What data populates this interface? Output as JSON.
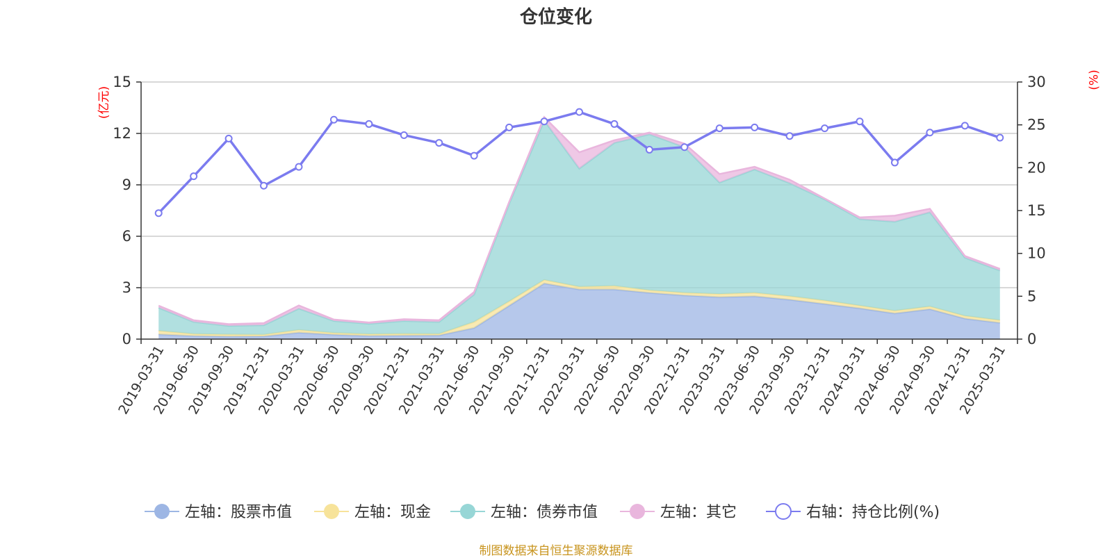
{
  "chart_data": {
    "type": "area",
    "title": "仓位变化",
    "left_unit": "(亿元)",
    "right_unit": "(%)",
    "source": "制图数据来自恒生聚源数据库",
    "ylim_left": [
      0,
      15
    ],
    "ylim_right": [
      0,
      30
    ],
    "yticks_left": [
      "0",
      "3",
      "6",
      "9",
      "12",
      "15"
    ],
    "yticks_right": [
      "0",
      "5",
      "10",
      "15",
      "20",
      "25",
      "30"
    ],
    "grid": true,
    "legend_position": "bottom",
    "categories": [
      "2019-03-31",
      "2019-06-30",
      "2019-09-30",
      "2019-12-31",
      "2020-03-31",
      "2020-06-30",
      "2020-09-30",
      "2020-12-31",
      "2021-03-31",
      "2021-06-30",
      "2021-09-30",
      "2021-12-31",
      "2022-03-31",
      "2022-06-30",
      "2022-09-30",
      "2022-12-31",
      "2023-03-31",
      "2023-06-30",
      "2023-09-30",
      "2023-12-31",
      "2024-03-31",
      "2024-06-30",
      "2024-09-30",
      "2024-12-31",
      "2025-03-31"
    ],
    "series": [
      {
        "name": "左轴：股票市值",
        "axis": "left",
        "color": "#9db6e4",
        "values": [
          0.28,
          0.18,
          0.15,
          0.16,
          0.38,
          0.26,
          0.19,
          0.21,
          0.22,
          0.65,
          1.95,
          3.25,
          2.9,
          2.9,
          2.7,
          2.55,
          2.45,
          2.5,
          2.3,
          2.05,
          1.8,
          1.5,
          1.75,
          1.2,
          0.95
        ]
      },
      {
        "name": "左轴：现金",
        "axis": "left",
        "color": "#f7e39a",
        "values": [
          0.2,
          0.12,
          0.12,
          0.1,
          0.15,
          0.1,
          0.1,
          0.1,
          0.08,
          0.35,
          0.25,
          0.2,
          0.15,
          0.2,
          0.15,
          0.15,
          0.18,
          0.2,
          0.2,
          0.2,
          0.15,
          0.15,
          0.15,
          0.15,
          0.15
        ]
      },
      {
        "name": "左轴：债券市值",
        "axis": "left",
        "color": "#97d6d6",
        "values": [
          1.35,
          0.7,
          0.5,
          0.55,
          1.25,
          0.7,
          0.6,
          0.75,
          0.7,
          1.6,
          5.7,
          9.3,
          6.9,
          8.35,
          9.1,
          8.5,
          6.5,
          7.2,
          6.6,
          5.9,
          5.05,
          5.2,
          5.5,
          3.4,
          2.9
        ]
      },
      {
        "name": "左轴：其它",
        "axis": "left",
        "color": "#e9b6dd",
        "values": [
          0.12,
          0.1,
          0.1,
          0.12,
          0.18,
          0.08,
          0.08,
          0.1,
          0.1,
          0.15,
          0.1,
          0.2,
          0.95,
          0.15,
          0.1,
          0.2,
          0.5,
          0.15,
          0.2,
          0.05,
          0.1,
          0.35,
          0.2,
          0.1,
          0.1
        ]
      },
      {
        "name": "右轴：持仓比例(%)",
        "axis": "right",
        "color": "#7b7bef",
        "values": [
          14.7,
          19.0,
          23.4,
          17.9,
          20.1,
          25.6,
          25.1,
          23.8,
          22.9,
          21.4,
          24.7,
          25.4,
          26.5,
          25.1,
          22.1,
          22.4,
          24.6,
          24.7,
          23.7,
          24.6,
          25.4,
          20.6,
          24.1,
          24.9,
          23.5
        ]
      }
    ]
  }
}
